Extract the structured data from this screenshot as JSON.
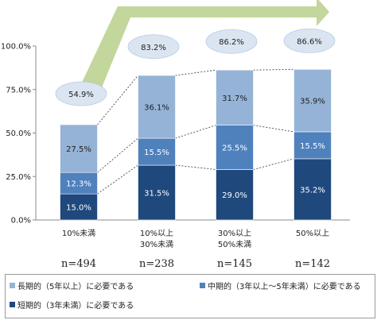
{
  "chart_data": {
    "type": "bar",
    "stacked": true,
    "categories": [
      [
        "10%未満"
      ],
      [
        "10%以上",
        "30%未満"
      ],
      [
        "30%以上",
        "50%未満"
      ],
      [
        "50%以上"
      ]
    ],
    "n_labels": [
      "n=494",
      "n=238",
      "n=145",
      "n=142"
    ],
    "totals": [
      "54.9%",
      "83.2%",
      "86.2%",
      "86.6%"
    ],
    "total_values": [
      54.9,
      83.2,
      86.2,
      86.6
    ],
    "series": [
      {
        "name": "短期的（3年未満）に必要である",
        "values": [
          15.0,
          31.5,
          29.0,
          35.2
        ],
        "labels": [
          "15.0%",
          "31.5%",
          "29.0%",
          "35.2%"
        ],
        "color": "#1f497d",
        "text_color": "#ffffff"
      },
      {
        "name": "中期的（3年以上〜5年未満）に必要である",
        "values": [
          12.3,
          15.5,
          25.5,
          15.5
        ],
        "labels": [
          "12.3%",
          "15.5%",
          "25.5%",
          "15.5%"
        ],
        "color": "#4f81bd",
        "text_color": "#ffffff"
      },
      {
        "name": "長期的（5年以上）に必要である",
        "values": [
          27.5,
          36.1,
          31.7,
          35.9
        ],
        "labels": [
          "27.5%",
          "36.1%",
          "31.7%",
          "35.9%"
        ],
        "color": "#95b3d7",
        "text_color": "#222222"
      }
    ],
    "ylim": [
      0,
      100
    ],
    "yticks": [
      "0.0%",
      "25.0%",
      "50.0%",
      "75.0%",
      "100.0%"
    ],
    "ytick_values": [
      0,
      25,
      50,
      75,
      100
    ],
    "title": "",
    "xlabel": "",
    "ylabel": "",
    "grid": false,
    "legend_position": "bottom",
    "arrow_color": "#c3d69b",
    "bubble_color": "#dbe5f1",
    "bubble_border": "#b8cce4"
  },
  "legend": {
    "long_label": "長期的（5年以上）に必要である",
    "mid_label": "中期的（3年以上〜5年未満）に必要である",
    "short_label": "短期的（3年未満）に必要である"
  }
}
